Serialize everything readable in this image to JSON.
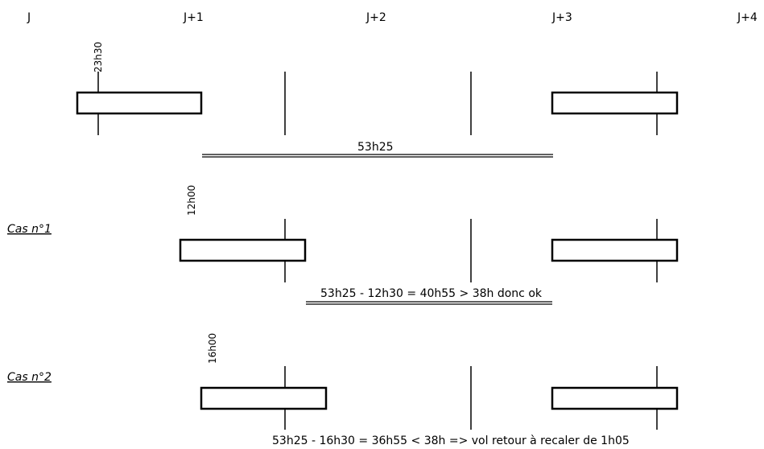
{
  "day_labels": [
    "J",
    "J+1",
    "J+2",
    "J+3",
    "J+4"
  ],
  "rows": [
    {
      "id": "reference",
      "case_label": "",
      "time_label": "23h30",
      "duration_label": "53h25"
    },
    {
      "id": "case1",
      "case_label": "Cas n°1",
      "time_label": "12h00",
      "duration_label": "53h25 - 12h30 = 40h55 > 38h donc ok"
    },
    {
      "id": "case2",
      "case_label": "Cas n°2",
      "time_label": "16h00",
      "duration_label": "53h25 - 16h30 = 36h55 < 38h => vol retour à recaler de 1h05"
    }
  ]
}
